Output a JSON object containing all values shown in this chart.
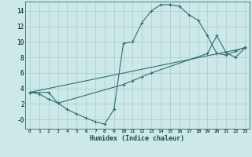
{
  "xlabel": "Humidex (Indice chaleur)",
  "background_color": "#cce8e8",
  "grid_color": "#aacccc",
  "line_color": "#2d7070",
  "xlim": [
    -0.5,
    23.5
  ],
  "ylim": [
    -1.2,
    15.2
  ],
  "xticks": [
    0,
    1,
    2,
    3,
    4,
    5,
    6,
    7,
    8,
    9,
    10,
    11,
    12,
    13,
    14,
    15,
    16,
    17,
    18,
    19,
    20,
    21,
    22,
    23
  ],
  "yticks": [
    0,
    2,
    4,
    6,
    8,
    10,
    12,
    14
  ],
  "ytick_labels": [
    "-0",
    "2",
    "4",
    "6",
    "8",
    "10",
    "12",
    "14"
  ],
  "line1_x": [
    0,
    1,
    2,
    3,
    4,
    5,
    6,
    7,
    8,
    9,
    10,
    11,
    12,
    13,
    14,
    15,
    16,
    17,
    18,
    19,
    20,
    21,
    22,
    23
  ],
  "line1_y": [
    3.5,
    3.3,
    2.6,
    2.1,
    1.3,
    0.7,
    0.2,
    -0.3,
    -0.6,
    1.3,
    9.8,
    10.0,
    12.5,
    14.0,
    14.8,
    14.8,
    14.6,
    13.5,
    12.8,
    10.8,
    8.5,
    8.3,
    8.8,
    9.3
  ],
  "line2_x": [
    0,
    2,
    3,
    10,
    11,
    12,
    13,
    19,
    20,
    21,
    22,
    23
  ],
  "line2_y": [
    3.5,
    3.5,
    2.1,
    4.5,
    5.0,
    5.5,
    6.0,
    8.5,
    10.8,
    8.6,
    8.0,
    9.2
  ],
  "line3_x": [
    0,
    23
  ],
  "line3_y": [
    3.5,
    9.2
  ]
}
